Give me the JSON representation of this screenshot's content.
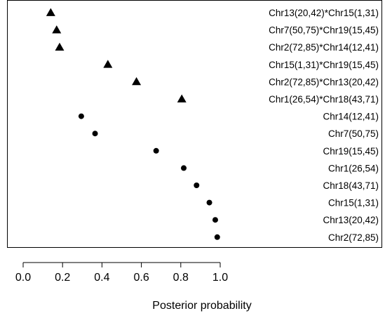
{
  "chart_data": {
    "type": "scatter",
    "title": "",
    "xlabel": "Posterior probability",
    "ylabel": "",
    "xlim": [
      -0.06,
      1.27
    ],
    "x_ticks": [
      0.0,
      0.2,
      0.4,
      0.6,
      0.8,
      1.0
    ],
    "x_tick_labels": [
      "0.0",
      "0.2",
      "0.4",
      "0.6",
      "0.8",
      "1.0"
    ],
    "grid": false,
    "legend": "none",
    "marker_color": "#000000",
    "points": [
      {
        "label": "Chr13(20,42)*Chr15(1,31)",
        "x": 0.14,
        "marker": "triangle"
      },
      {
        "label": "Chr7(50,75)*Chr19(15,45)",
        "x": 0.17,
        "marker": "triangle"
      },
      {
        "label": "Chr2(72,85)*Chr14(12,41)",
        "x": 0.185,
        "marker": "triangle"
      },
      {
        "label": "Chr15(1,31)*Chr19(15,45)",
        "x": 0.43,
        "marker": "triangle"
      },
      {
        "label": "Chr2(72,85)*Chr13(20,42)",
        "x": 0.575,
        "marker": "triangle"
      },
      {
        "label": "Chr1(26,54)*Chr18(43,71)",
        "x": 0.805,
        "marker": "triangle"
      },
      {
        "label": "Chr14(12,41)",
        "x": 0.295,
        "marker": "circle"
      },
      {
        "label": "Chr7(50,75)",
        "x": 0.365,
        "marker": "circle"
      },
      {
        "label": "Chr19(15,45)",
        "x": 0.675,
        "marker": "circle"
      },
      {
        "label": "Chr1(26,54)",
        "x": 0.815,
        "marker": "circle"
      },
      {
        "label": "Chr18(43,71)",
        "x": 0.88,
        "marker": "circle"
      },
      {
        "label": "Chr15(1,31)",
        "x": 0.945,
        "marker": "circle"
      },
      {
        "label": "Chr13(20,42)",
        "x": 0.975,
        "marker": "circle"
      },
      {
        "label": "Chr2(72,85)",
        "x": 0.985,
        "marker": "circle"
      }
    ]
  }
}
